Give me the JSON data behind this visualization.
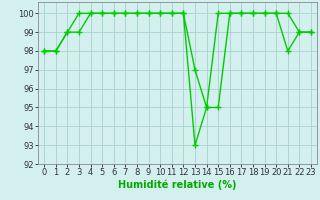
{
  "line1_x": [
    0,
    1,
    2,
    3,
    4,
    5,
    6,
    7,
    8,
    9,
    10,
    11,
    12,
    13,
    14,
    15,
    16,
    17,
    18,
    19,
    20,
    21,
    22,
    23
  ],
  "line1_y": [
    98,
    98,
    99,
    99,
    100,
    100,
    100,
    100,
    100,
    100,
    100,
    100,
    100,
    97,
    95,
    95,
    100,
    100,
    100,
    100,
    100,
    98,
    99,
    99
  ],
  "line2_x": [
    0,
    1,
    2,
    3,
    4,
    5,
    6,
    7,
    8,
    9,
    10,
    11,
    12,
    13,
    14,
    15,
    16,
    17,
    18,
    19,
    20,
    21,
    22,
    23
  ],
  "line2_y": [
    98,
    98,
    99,
    100,
    100,
    100,
    100,
    100,
    100,
    100,
    100,
    100,
    100,
    93,
    95,
    100,
    100,
    100,
    100,
    100,
    100,
    100,
    99,
    99
  ],
  "line_color": "#00cc00",
  "background_color": "#d4f0ee",
  "grid_color": "#aacfcf",
  "xlabel": "Humidité relative (%)",
  "ylim": [
    92,
    100.6
  ],
  "xlim": [
    -0.5,
    23.5
  ],
  "yticks": [
    92,
    93,
    94,
    95,
    96,
    97,
    98,
    99,
    100
  ],
  "xticks": [
    0,
    1,
    2,
    3,
    4,
    5,
    6,
    7,
    8,
    9,
    10,
    11,
    12,
    13,
    14,
    15,
    16,
    17,
    18,
    19,
    20,
    21,
    22,
    23
  ],
  "marker": "+",
  "marker_size": 4,
  "marker_edge_width": 1.0,
  "line_width": 1.0,
  "xlabel_fontsize": 7,
  "tick_fontsize": 6,
  "xlabel_color": "#00aa00"
}
